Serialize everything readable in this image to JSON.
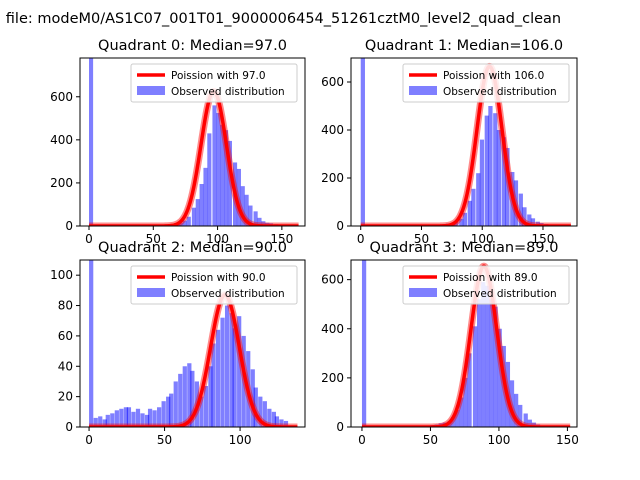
{
  "figure": {
    "suptitle": "n file: modeM0/AS1C07_001T01_9000006454_51261cztM0_level2_quad_clean"
  },
  "chart_data": [
    {
      "type": "bar",
      "title": "Quadrant 0: Median=97.0",
      "xlim": [
        -7,
        168
      ],
      "ylim": [
        0,
        780
      ],
      "xticks": [
        0,
        50,
        100,
        150
      ],
      "yticks": [
        0,
        200,
        400,
        600
      ],
      "legend": {
        "placement": "top-right",
        "line_label": "Poission with 97.0",
        "hist_label": "Observed distribution"
      },
      "median": 97.0,
      "poisson_peak": 625,
      "bin_width": 3.2,
      "hist": [
        [
          0,
          780
        ],
        [
          48,
          4
        ],
        [
          51,
          3
        ],
        [
          54,
          4
        ],
        [
          57,
          6
        ],
        [
          60,
          8
        ],
        [
          64,
          8
        ],
        [
          67,
          10
        ],
        [
          70,
          15
        ],
        [
          73,
          25
        ],
        [
          76,
          43
        ],
        [
          80,
          85
        ],
        [
          83,
          125
        ],
        [
          86,
          195
        ],
        [
          89,
          270
        ],
        [
          92,
          430
        ],
        [
          96,
          560
        ],
        [
          99,
          525
        ],
        [
          102,
          470
        ],
        [
          105,
          445
        ],
        [
          108,
          395
        ],
        [
          112,
          295
        ],
        [
          115,
          265
        ],
        [
          118,
          185
        ],
        [
          121,
          145
        ],
        [
          124,
          95
        ],
        [
          128,
          68
        ],
        [
          131,
          38
        ],
        [
          134,
          22
        ],
        [
          137,
          15
        ],
        [
          140,
          12
        ],
        [
          144,
          8
        ]
      ]
    },
    {
      "type": "bar",
      "title": "Quadrant 1: Median=106.0",
      "xlim": [
        -8,
        178
      ],
      "ylim": [
        0,
        700
      ],
      "xticks": [
        0,
        50,
        100,
        150
      ],
      "yticks": [
        0,
        200,
        400,
        600
      ],
      "legend": {
        "placement": "top-right",
        "line_label": "Poission with 106.0",
        "hist_label": "Observed distribution"
      },
      "median": 106.0,
      "poisson_peak": 665,
      "bin_width": 3.5,
      "hist": [
        [
          0,
          700
        ],
        [
          60,
          5
        ],
        [
          63,
          5
        ],
        [
          67,
          8
        ],
        [
          70,
          10
        ],
        [
          74,
          12
        ],
        [
          77,
          20
        ],
        [
          81,
          30
        ],
        [
          84,
          55
        ],
        [
          88,
          105
        ],
        [
          91,
          155
        ],
        [
          95,
          220
        ],
        [
          98,
          360
        ],
        [
          102,
          460
        ],
        [
          105,
          500
        ],
        [
          109,
          470
        ],
        [
          112,
          400
        ],
        [
          116,
          370
        ],
        [
          119,
          325
        ],
        [
          123,
          225
        ],
        [
          126,
          190
        ],
        [
          130,
          135
        ],
        [
          133,
          78
        ],
        [
          137,
          48
        ],
        [
          140,
          32
        ],
        [
          144,
          18
        ],
        [
          147,
          12
        ],
        [
          151,
          8
        ],
        [
          154,
          5
        ]
      ]
    },
    {
      "type": "bar",
      "title": "Quadrant 2: Median=90.0",
      "xlim": [
        -6,
        143
      ],
      "ylim": [
        0,
        110
      ],
      "xticks": [
        0,
        50,
        100
      ],
      "yticks": [
        0,
        20,
        40,
        60,
        80,
        100
      ],
      "legend": {
        "placement": "top-right",
        "line_label": "Poission with 90.0",
        "hist_label": "Observed distribution"
      },
      "median": 90.0,
      "poisson_peak": 87,
      "bin_width": 2.8,
      "hist": [
        [
          0,
          110
        ],
        [
          3,
          6
        ],
        [
          6,
          7
        ],
        [
          9,
          5
        ],
        [
          11,
          8
        ],
        [
          14,
          9
        ],
        [
          17,
          11
        ],
        [
          20,
          12
        ],
        [
          23,
          13
        ],
        [
          25,
          13
        ],
        [
          28,
          10
        ],
        [
          31,
          12
        ],
        [
          34,
          9
        ],
        [
          37,
          8
        ],
        [
          39,
          12
        ],
        [
          42,
          11
        ],
        [
          45,
          13
        ],
        [
          48,
          17
        ],
        [
          51,
          20
        ],
        [
          53,
          22
        ],
        [
          56,
          30
        ],
        [
          59,
          35
        ],
        [
          62,
          40
        ],
        [
          65,
          42
        ],
        [
          67,
          37
        ],
        [
          70,
          30
        ],
        [
          73,
          20
        ],
        [
          76,
          27
        ],
        [
          79,
          40
        ],
        [
          81,
          55
        ],
        [
          84,
          64
        ],
        [
          87,
          72
        ],
        [
          90,
          80
        ],
        [
          93,
          75
        ],
        [
          95,
          65
        ],
        [
          98,
          73
        ],
        [
          101,
          60
        ],
        [
          104,
          50
        ],
        [
          107,
          38
        ],
        [
          109,
          26
        ],
        [
          112,
          20
        ],
        [
          115,
          17
        ],
        [
          118,
          12
        ],
        [
          121,
          10
        ],
        [
          123,
          7
        ],
        [
          126,
          5
        ],
        [
          129,
          4
        ]
      ]
    },
    {
      "type": "bar",
      "title": "Quadrant 3: Median=89.0",
      "xlim": [
        -8,
        157
      ],
      "ylim": [
        0,
        680
      ],
      "xticks": [
        0,
        50,
        100,
        150
      ],
      "yticks": [
        0,
        200,
        400,
        600
      ],
      "legend": {
        "placement": "top-right",
        "line_label": "Poission with 89.0",
        "hist_label": "Observed distribution"
      },
      "median": 89.0,
      "poisson_peak": 655,
      "bin_width": 3.1,
      "hist": [
        [
          0,
          680
        ],
        [
          50,
          8
        ],
        [
          53,
          10
        ],
        [
          56,
          15
        ],
        [
          59,
          18
        ],
        [
          62,
          22
        ],
        [
          65,
          40
        ],
        [
          68,
          70
        ],
        [
          71,
          120
        ],
        [
          74,
          200
        ],
        [
          77,
          300
        ],
        [
          81,
          410
        ],
        [
          84,
          520
        ],
        [
          87,
          590
        ],
        [
          90,
          575
        ],
        [
          93,
          520
        ],
        [
          96,
          490
        ],
        [
          99,
          400
        ],
        [
          102,
          330
        ],
        [
          105,
          265
        ],
        [
          108,
          190
        ],
        [
          111,
          135
        ],
        [
          114,
          90
        ],
        [
          118,
          55
        ],
        [
          121,
          30
        ],
        [
          124,
          18
        ],
        [
          127,
          10
        ],
        [
          130,
          6
        ],
        [
          133,
          3
        ]
      ]
    }
  ]
}
